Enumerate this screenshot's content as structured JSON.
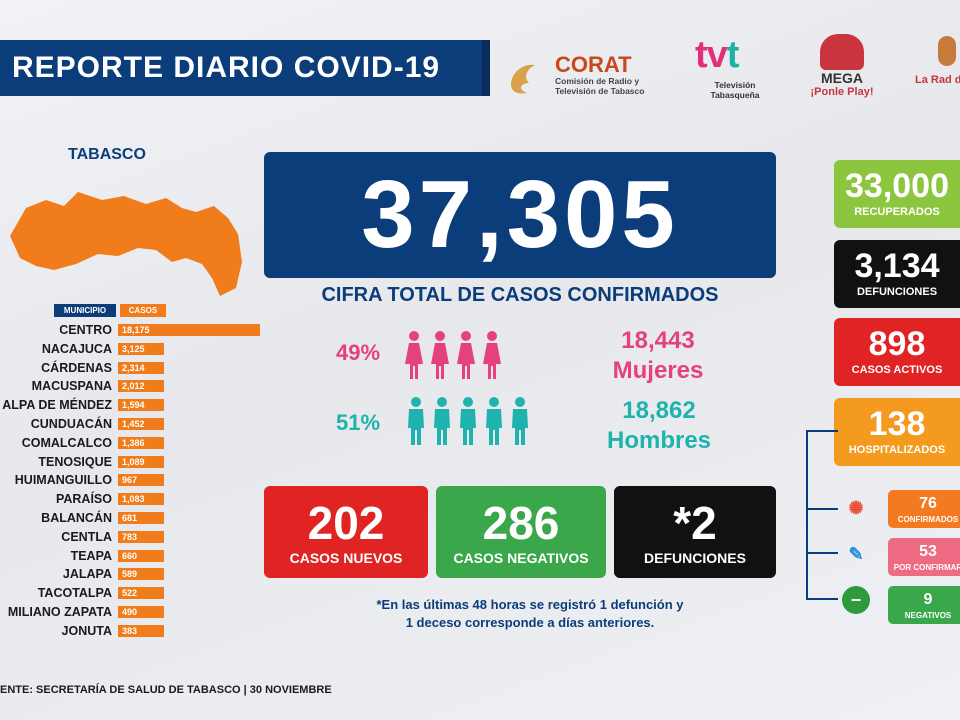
{
  "header": {
    "title": "REPORTE DIARIO COVID-19",
    "logos": {
      "corat_name": "CORAT",
      "corat_sub": "Comisión de Radio y Televisión de Tabasco",
      "tvt_name_a": "tv",
      "tvt_name_b": "t",
      "tvt_sub": "Televisión Tabasqueña",
      "mega_name": "MEGA",
      "mega_sub": "¡Ponle Play!",
      "radio_sub": "La Rad de Taba"
    }
  },
  "state": {
    "label": "TABASCO"
  },
  "table": {
    "col_municipio": "MUNICIPIO",
    "col_casos": "CASOS",
    "rows": [
      {
        "name": "CENTRO",
        "value": "18,175",
        "n": 18175
      },
      {
        "name": "NACAJUCA",
        "value": "3,125",
        "n": 3125
      },
      {
        "name": "CÁRDENAS",
        "value": "2,314",
        "n": 2314
      },
      {
        "name": "MACUSPANA",
        "value": "2,012",
        "n": 2012
      },
      {
        "name": "ALPA DE MÉNDEZ",
        "value": "1,594",
        "n": 1594
      },
      {
        "name": "CUNDUACÁN",
        "value": "1,452",
        "n": 1452
      },
      {
        "name": "COMALCALCO",
        "value": "1,386",
        "n": 1386
      },
      {
        "name": "TENOSIQUE",
        "value": "1,089",
        "n": 1089
      },
      {
        "name": "HUIMANGUILLO",
        "value": "967",
        "n": 967
      },
      {
        "name": "PARAÍSO",
        "value": "1,083",
        "n": 1083
      },
      {
        "name": "BALANCÁN",
        "value": "681",
        "n": 681
      },
      {
        "name": "CENTLA",
        "value": "783",
        "n": 783
      },
      {
        "name": "TEAPA",
        "value": "660",
        "n": 660
      },
      {
        "name": "JALAPA",
        "value": "589",
        "n": 589
      },
      {
        "name": "TACOTALPA",
        "value": "522",
        "n": 522
      },
      {
        "name": "MILIANO ZAPATA",
        "value": "490",
        "n": 490
      },
      {
        "name": "JONUTA",
        "value": "383",
        "n": 383
      }
    ]
  },
  "total": {
    "value": "37,305",
    "label": "CIFRA TOTAL DE CASOS CONFIRMADOS"
  },
  "gender": {
    "women_pct": "49%",
    "women_count": "18,443",
    "women_label": "Mujeres",
    "men_pct": "51%",
    "men_count": "18,862",
    "men_label": "Hombres"
  },
  "stats": {
    "new_num": "202",
    "new_lbl": "CASOS NUEVOS",
    "neg_num": "286",
    "neg_lbl": "CASOS NEGATIVOS",
    "def_num": "*2",
    "def_lbl": "DEFUNCIONES"
  },
  "note": {
    "line1": "*En las últimas 48 horas se registró 1 defunción y",
    "line2": "1 deceso corresponde a días anteriores."
  },
  "right": {
    "rec_num": "33,000",
    "rec_lbl": "RECUPERADOS",
    "def_num": "3,134",
    "def_lbl": "DEFUNCIONES",
    "act_num": "898",
    "act_lbl": "CASOS ACTIVOS",
    "hos_num": "138",
    "hos_lbl": "HOSPITALIZADOS",
    "conf_num": "76",
    "conf_lbl": "CONFIRMADOS",
    "por_num": "53",
    "por_lbl": "POR CONFIRMAR",
    "neg_num": "9",
    "neg_lbl": "NEGATIVOS"
  },
  "source": "ENTE: SECRETARÍA DE SALUD DE TABASCO  | 30 NOVIEMBRE",
  "colors": {
    "navy": "#0b3d7a",
    "orange": "#f07c1b",
    "pink": "#e5417f",
    "teal": "#1fb3ad"
  }
}
